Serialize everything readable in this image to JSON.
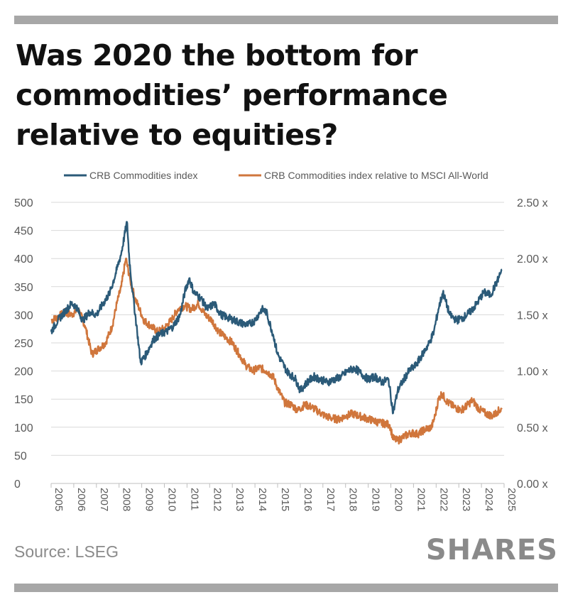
{
  "title": "Was 2020 the bottom for commodities’ performance relative to equities?",
  "source": "Source: LSEG",
  "brand": "SHARES",
  "colors": {
    "crb": "#2b5a78",
    "relative": "#d0763c",
    "grid": "#d9d9d9",
    "text": "#595959",
    "rule": "#a7a7a7"
  },
  "chart_data": {
    "type": "line",
    "title": "",
    "xlabel": "",
    "ylabel": "",
    "legend_position": "top",
    "grid": true,
    "x_range": [
      2005,
      2025
    ],
    "x_ticks": [
      "2005",
      "2006",
      "2007",
      "2008",
      "2009",
      "2010",
      "2011",
      "2012",
      "2013",
      "2014",
      "2015",
      "2016",
      "2017",
      "2018",
      "2019",
      "2020",
      "2021",
      "2022",
      "2023",
      "2024",
      "2025"
    ],
    "y_left": {
      "range": [
        0,
        500
      ],
      "ticks": [
        "0",
        "50",
        "100",
        "150",
        "200",
        "250",
        "300",
        "350",
        "400",
        "450",
        "500"
      ]
    },
    "y_right": {
      "range": [
        0,
        2.5
      ],
      "ticks": [
        "0.00 x",
        "0.50 x",
        "1.00 x",
        "1.50 x",
        "2.00 x",
        "2.50 x"
      ]
    },
    "series": [
      {
        "name": "CRB Commodities index",
        "axis": "left",
        "x": [
          2005.0,
          2005.3,
          2005.6,
          2005.9,
          2006.1,
          2006.4,
          2006.7,
          2007.0,
          2007.3,
          2007.6,
          2007.9,
          2008.1,
          2008.35,
          2008.45,
          2008.6,
          2008.8,
          2008.95,
          2009.2,
          2009.5,
          2009.8,
          2010.1,
          2010.4,
          2010.7,
          2010.9,
          2011.1,
          2011.3,
          2011.6,
          2011.9,
          2012.2,
          2012.5,
          2012.8,
          2013.1,
          2013.4,
          2013.7,
          2014.0,
          2014.3,
          2014.5,
          2014.8,
          2015.0,
          2015.4,
          2015.8,
          2016.0,
          2016.3,
          2016.6,
          2016.9,
          2017.2,
          2017.5,
          2017.8,
          2018.1,
          2018.4,
          2018.7,
          2019.0,
          2019.3,
          2019.6,
          2019.9,
          2020.1,
          2020.3,
          2020.5,
          2020.8,
          2021.1,
          2021.4,
          2021.7,
          2021.9,
          2022.1,
          2022.3,
          2022.6,
          2022.9,
          2023.2,
          2023.5,
          2023.8,
          2024.1,
          2024.4,
          2024.7,
          2024.9
        ],
        "values": [
          270,
          290,
          305,
          320,
          315,
          290,
          305,
          300,
          320,
          340,
          380,
          410,
          465,
          400,
          340,
          270,
          215,
          230,
          255,
          265,
          270,
          280,
          300,
          340,
          365,
          340,
          330,
          310,
          320,
          300,
          295,
          290,
          285,
          282,
          290,
          310,
          305,
          265,
          230,
          200,
          185,
          165,
          180,
          190,
          185,
          180,
          185,
          190,
          200,
          205,
          195,
          185,
          190,
          180,
          185,
          125,
          165,
          180,
          200,
          210,
          230,
          250,
          270,
          310,
          340,
          300,
          290,
          295,
          305,
          320,
          340,
          335,
          360,
          380
        ]
      },
      {
        "name": "CRB Commodities index relative to MSCI All-World",
        "axis": "right",
        "x": [
          2005.0,
          2005.3,
          2005.6,
          2005.9,
          2006.2,
          2006.5,
          2006.8,
          2007.1,
          2007.4,
          2007.7,
          2007.9,
          2008.1,
          2008.3,
          2008.5,
          2008.7,
          2008.9,
          2009.1,
          2009.4,
          2009.7,
          2010.0,
          2010.3,
          2010.6,
          2010.9,
          2011.2,
          2011.5,
          2011.8,
          2012.1,
          2012.4,
          2012.7,
          2013.0,
          2013.3,
          2013.6,
          2013.9,
          2014.2,
          2014.5,
          2014.8,
          2015.0,
          2015.3,
          2015.6,
          2015.9,
          2016.2,
          2016.5,
          2016.8,
          2017.1,
          2017.4,
          2017.7,
          2018.0,
          2018.3,
          2018.6,
          2018.9,
          2019.2,
          2019.5,
          2019.8,
          2019.95,
          2020.1,
          2020.3,
          2020.6,
          2020.9,
          2021.2,
          2021.5,
          2021.8,
          2021.95,
          2022.1,
          2022.25,
          2022.5,
          2022.8,
          2023.1,
          2023.4,
          2023.6,
          2023.9,
          2024.2,
          2024.5,
          2024.7,
          2024.9
        ],
        "values": [
          1.45,
          1.48,
          1.52,
          1.5,
          1.55,
          1.4,
          1.15,
          1.2,
          1.25,
          1.4,
          1.6,
          1.75,
          2.0,
          1.8,
          1.65,
          1.55,
          1.45,
          1.4,
          1.35,
          1.38,
          1.45,
          1.55,
          1.58,
          1.55,
          1.6,
          1.5,
          1.45,
          1.35,
          1.3,
          1.25,
          1.15,
          1.05,
          1.0,
          1.03,
          1.0,
          0.95,
          0.85,
          0.72,
          0.7,
          0.65,
          0.7,
          0.68,
          0.64,
          0.6,
          0.58,
          0.57,
          0.6,
          0.62,
          0.6,
          0.58,
          0.56,
          0.54,
          0.53,
          0.52,
          0.4,
          0.38,
          0.42,
          0.45,
          0.44,
          0.48,
          0.5,
          0.6,
          0.75,
          0.8,
          0.72,
          0.68,
          0.65,
          0.7,
          0.74,
          0.66,
          0.62,
          0.6,
          0.64,
          0.66
        ]
      }
    ]
  }
}
